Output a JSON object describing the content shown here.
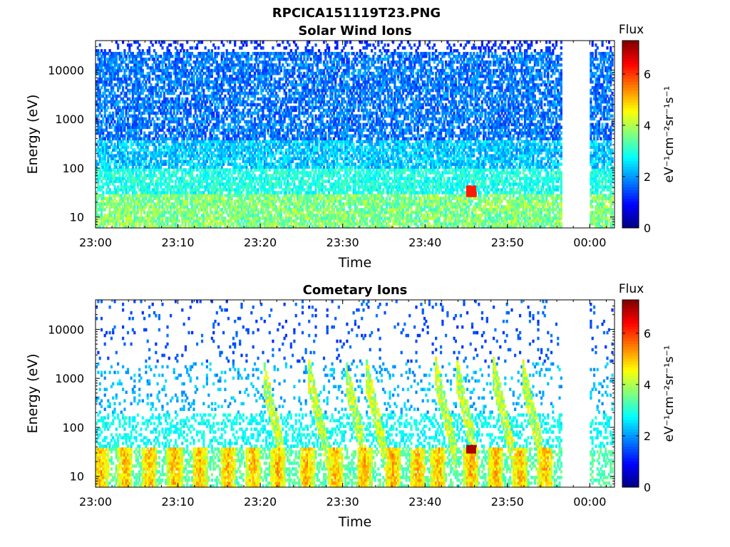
{
  "figure_title": "RPCICA151119T23.PNG",
  "chart_data": [
    {
      "type": "heatmap",
      "title": "Solar Wind Ions",
      "xlabel": "Time",
      "ylabel": "Energy (eV)",
      "x_ticks": [
        "23:00",
        "23:10",
        "23:20",
        "23:30",
        "23:40",
        "23:50",
        "00:00"
      ],
      "xlim_minutes": [
        0,
        63
      ],
      "y_scale": "log",
      "ylim": [
        6,
        40000
      ],
      "y_ticks": [
        10,
        100,
        1000,
        10000
      ],
      "y_tick_labels": [
        "10",
        "100",
        "1000",
        "10000"
      ],
      "data_gap_minutes": [
        56.5,
        60.0
      ],
      "colorbar": {
        "title": "Flux",
        "label": "eV⁻¹cm⁻²sr⁻¹s⁻¹",
        "range": [
          0,
          7.3
        ],
        "ticks": [
          0,
          2,
          4,
          6
        ],
        "colormap": "jet"
      },
      "features": [
        {
          "minute": 45.5,
          "energy_range": [
            25,
            45
          ],
          "flux": 6.2
        }
      ]
    },
    {
      "type": "heatmap",
      "title": "Cometary Ions",
      "xlabel": "Time",
      "ylabel": "Energy (eV)",
      "x_ticks": [
        "23:00",
        "23:10",
        "23:20",
        "23:30",
        "23:40",
        "23:50",
        "00:00"
      ],
      "xlim_minutes": [
        0,
        63
      ],
      "y_scale": "log",
      "ylim": [
        6,
        40000
      ],
      "y_ticks": [
        10,
        100,
        1000,
        10000
      ],
      "y_tick_labels": [
        "10",
        "100",
        "1000",
        "10000"
      ],
      "data_gap_minutes": [
        56.5,
        60.0
      ],
      "colorbar": {
        "title": "Flux",
        "label": "eV⁻¹cm⁻²sr⁻¹s⁻¹",
        "range": [
          0,
          7.3
        ],
        "ticks": [
          0,
          2,
          4,
          6
        ],
        "colormap": "jet"
      },
      "bursts_minutes": [
        0.5,
        3.5,
        6.5,
        9.5,
        12.5,
        16,
        19,
        22,
        25.5,
        29,
        32.5,
        36,
        39,
        41.5,
        45.5,
        48.5,
        51.5,
        54.5
      ],
      "dispersion_streaks_minutes": [
        20.5,
        26,
        30.5,
        33,
        41.5,
        44,
        52,
        48.5
      ],
      "features": [
        {
          "minute": 45.5,
          "energy_range": [
            28,
            45
          ],
          "flux": 7.0
        }
      ]
    }
  ]
}
